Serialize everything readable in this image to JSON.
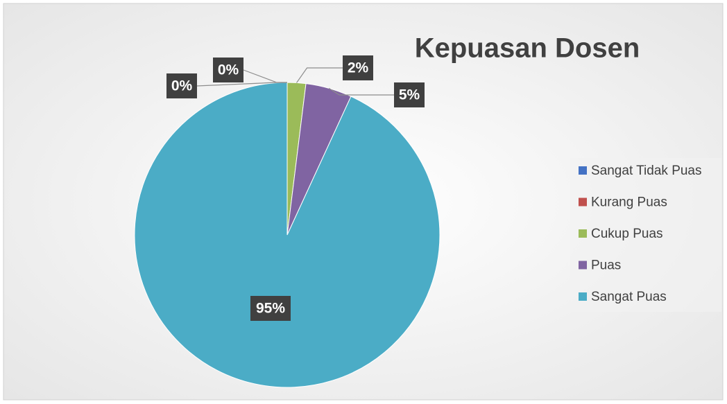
{
  "chart_data": {
    "type": "pie",
    "title": "Kepuasan Dosen",
    "categories": [
      "Sangat Tidak Puas",
      "Kurang Puas",
      "Cukup Puas",
      "Puas",
      "Sangat Puas"
    ],
    "values": [
      0,
      0,
      2,
      5,
      95
    ],
    "value_labels": [
      "0%",
      "0%",
      "2%",
      "5%",
      "95%"
    ],
    "colors": [
      "#4472c4",
      "#c0504d",
      "#9bbb59",
      "#8064a2",
      "#4bacc6"
    ],
    "legend": "right"
  }
}
